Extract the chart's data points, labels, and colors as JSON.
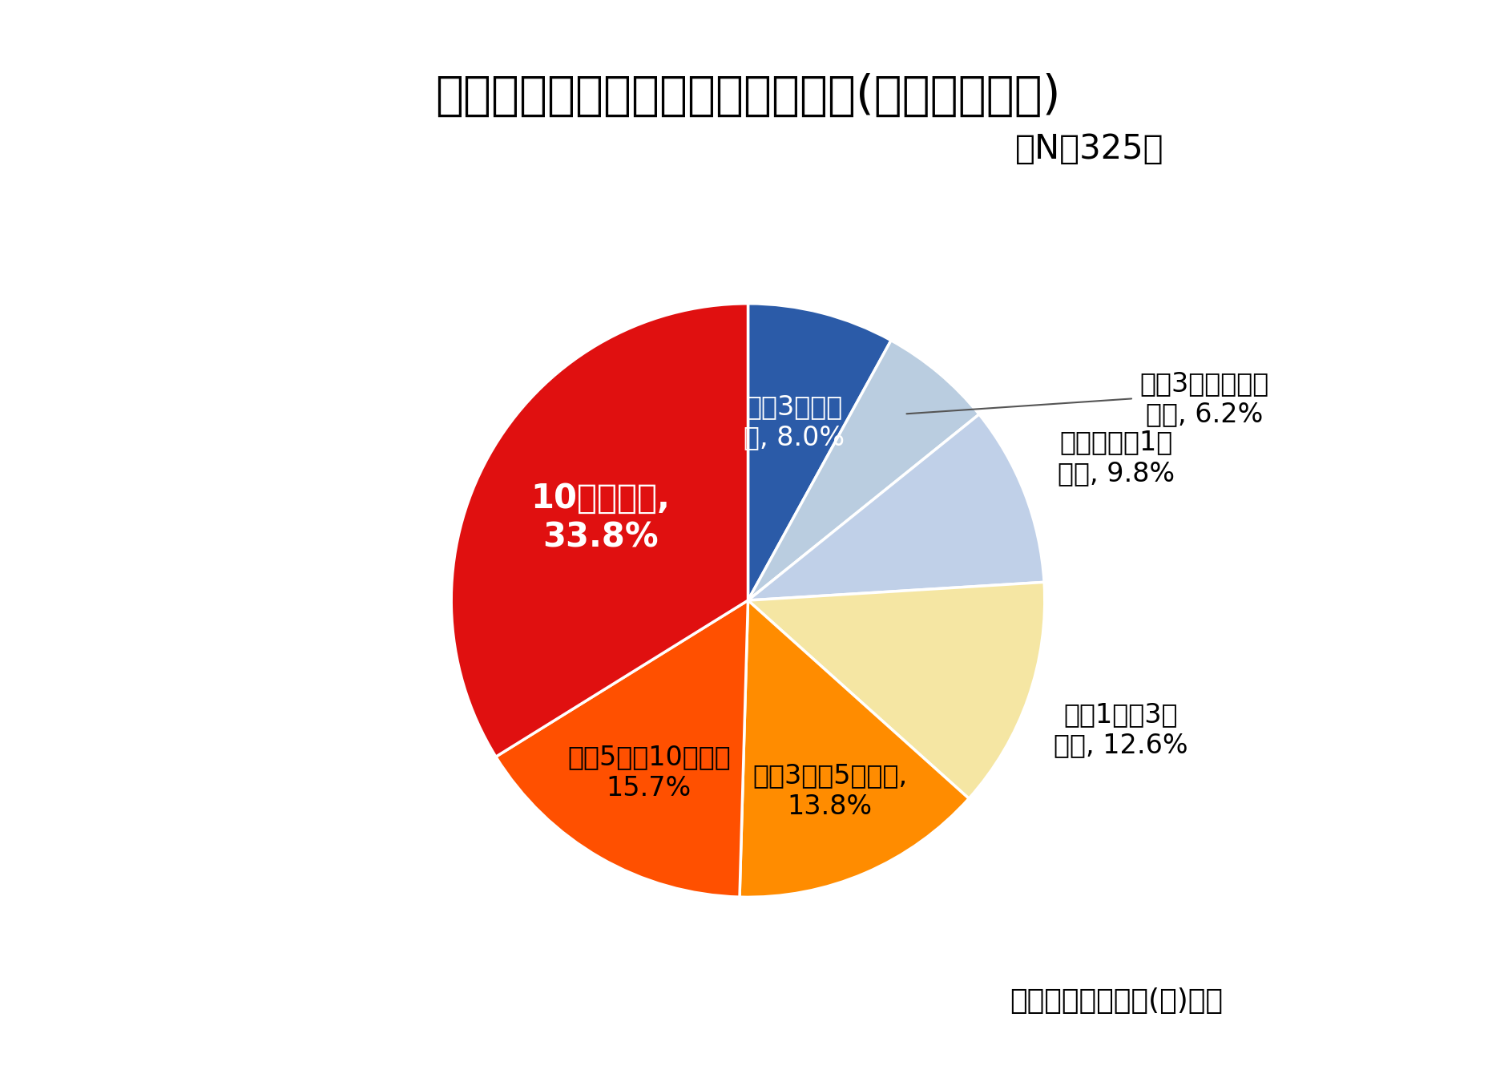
{
  "title": "腰の痛みや悩みを感じ始めた時期(デスクワーク)",
  "subtitle": "（N＝325）",
  "source": "日本シグマックス(株)調べ",
  "slices": [
    {
      "value": 8.0,
      "color": "#2B5BA8"
    },
    {
      "value": 6.2,
      "color": "#BACDE0"
    },
    {
      "value": 9.8,
      "color": "#C0D0E8"
    },
    {
      "value": 12.6,
      "color": "#F5E6A3"
    },
    {
      "value": 13.8,
      "color": "#FF8C00"
    },
    {
      "value": 15.7,
      "color": "#FF5000"
    },
    {
      "value": 33.8,
      "color": "#E01010"
    }
  ],
  "background_color": "#FFFFFF",
  "title_fontsize": 42,
  "subtitle_fontsize": 30,
  "label_fontsize": 24,
  "source_fontsize": 26
}
